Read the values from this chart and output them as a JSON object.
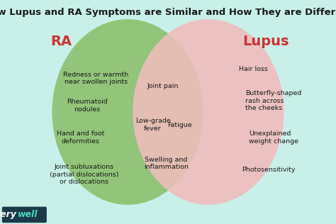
{
  "title": "How Lupus and RA Symptoms are Similar and How They are Different",
  "background_color": "#C8F0E8",
  "left_circle_color": "#8BBF6A",
  "right_circle_color": "#F0BCBC",
  "overlap_color": "#B8D4A0",
  "left_label": "RA",
  "right_label": "Lupus",
  "left_items": [
    [
      "Redness or warmth\nnear swollen joints",
      2.85,
      4.55
    ],
    [
      "Rheumatoid\nnodules",
      2.6,
      3.7
    ],
    [
      "Hand and foot\ndeformities",
      2.4,
      2.7
    ],
    [
      "Joint subluxations\n(partial dislocations)\nor dislocations",
      2.5,
      1.55
    ]
  ],
  "center_items": [
    [
      "Joint pain",
      4.85,
      4.3
    ],
    [
      "Low-grade\nfever",
      4.55,
      3.1
    ],
    [
      "Fatigue",
      5.35,
      3.1
    ],
    [
      "Swelling and\ninflammation",
      4.95,
      1.9
    ]
  ],
  "right_items": [
    [
      "Hair loss",
      7.1,
      4.85
    ],
    [
      "Butterfly-shaped\nrash across\nthe cheeks",
      7.3,
      3.85
    ],
    [
      "Unexplained\nweight change",
      7.4,
      2.7
    ],
    [
      "Photosensitivity",
      7.2,
      1.7
    ]
  ],
  "watermark_text": "very",
  "watermark_text2": "well",
  "title_fontsize": 9.5,
  "label_fontsize": 14,
  "item_fontsize": 6.8,
  "watermark_fontsize": 9
}
